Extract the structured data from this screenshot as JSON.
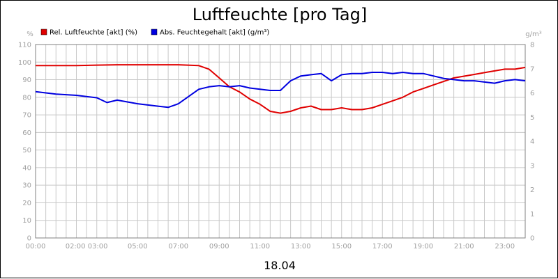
{
  "chart_data": {
    "type": "line",
    "title": "Luftfeuchte [pro Tag]",
    "date_label": "18.04",
    "y_left_unit": "%",
    "y_right_unit": "g/m³",
    "y_left_ticks": [
      0,
      10,
      20,
      30,
      40,
      50,
      60,
      70,
      80,
      90,
      100,
      110
    ],
    "y_right_ticks": [
      0,
      1,
      2,
      3,
      4,
      5,
      6,
      7,
      8
    ],
    "ylim_left": [
      0,
      110
    ],
    "ylim_right": [
      0,
      8
    ],
    "x_ticks": [
      "00:00",
      "02:00 03:00",
      "05:00",
      "07:00",
      "09:00",
      "11:00",
      "13:00",
      "15:00",
      "17:00",
      "19:00",
      "21:00",
      "23:00"
    ],
    "x_tick_hours": [
      0,
      2.5,
      5,
      7,
      9,
      11,
      13,
      15,
      17,
      19,
      21,
      23
    ],
    "xlim_hours": [
      0,
      24
    ],
    "grid": true,
    "legend_position": "top-left",
    "series": [
      {
        "name": "Rel. Luftfeuchte [akt] (%)",
        "color": "#e00000",
        "axis": "left",
        "x_hours": [
          0,
          1,
          2,
          3,
          4,
          5,
          6,
          7,
          8,
          8.5,
          9,
          9.5,
          10,
          10.5,
          11,
          11.5,
          12,
          12.5,
          13,
          13.5,
          14,
          14.5,
          15,
          15.5,
          16,
          16.5,
          17,
          17.5,
          18,
          18.5,
          19,
          19.5,
          20,
          20.5,
          21,
          21.5,
          22,
          22.5,
          23,
          23.5,
          24
        ],
        "values": [
          98,
          98,
          98,
          98.3,
          98.5,
          98.5,
          98.5,
          98.5,
          98,
          96,
          91,
          86,
          83,
          79,
          76,
          72,
          71,
          72,
          74,
          75,
          73,
          73,
          74,
          73,
          73,
          74,
          76,
          78,
          80,
          83,
          85,
          87,
          89,
          91,
          92,
          93,
          94,
          95,
          96,
          96,
          97
        ]
      },
      {
        "name": "Abs. Feuchtegehalt [akt] (g/m³)",
        "color": "#0000e0",
        "axis": "right",
        "x_hours": [
          0,
          1,
          2,
          3,
          3.5,
          4,
          5,
          5.5,
          6,
          6.5,
          7,
          7.5,
          8,
          8.5,
          9,
          9.5,
          10,
          10.5,
          11,
          11.5,
          12,
          12.5,
          13,
          13.5,
          14,
          14.5,
          15,
          15.5,
          16,
          16.5,
          17,
          17.5,
          18,
          18.5,
          19,
          19.5,
          20,
          20.5,
          21,
          21.5,
          22,
          22.5,
          23,
          23.5,
          24
        ],
        "values": [
          6.05,
          5.95,
          5.9,
          5.8,
          5.6,
          5.7,
          5.55,
          5.5,
          5.45,
          5.4,
          5.55,
          5.85,
          6.15,
          6.25,
          6.3,
          6.25,
          6.3,
          6.2,
          6.15,
          6.1,
          6.1,
          6.5,
          6.7,
          6.75,
          6.8,
          6.5,
          6.75,
          6.8,
          6.8,
          6.85,
          6.85,
          6.8,
          6.85,
          6.8,
          6.8,
          6.7,
          6.6,
          6.55,
          6.5,
          6.5,
          6.45,
          6.4,
          6.5,
          6.55,
          6.5
        ]
      }
    ]
  }
}
